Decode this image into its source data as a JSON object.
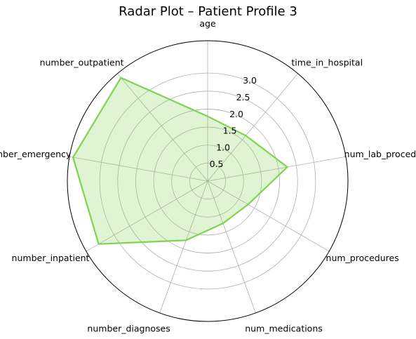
{
  "chart_data": {
    "type": "radar",
    "title": "Radar Plot – Patient Profile 3",
    "categories": [
      "age",
      "time_in_hospital",
      "num_lab_procedures",
      "num_procedures",
      "num_medications",
      "number_diagnoses",
      "number_inpatient",
      "number_emergency",
      "number_outpatient"
    ],
    "series": [
      {
        "values": [
          1.8,
          1.65,
          2.25,
          1.3,
          1.25,
          1.75,
          3.5,
          3.8,
          3.75
        ]
      }
    ],
    "rlim": [
      0,
      3.9
    ],
    "r_ticks": [
      0.5,
      1.0,
      1.5,
      2.0,
      2.5,
      3.0
    ],
    "r_tick_labels": [
      "0.5",
      "1.0",
      "1.5",
      "2.0",
      "2.5",
      "3.0"
    ],
    "grid": true,
    "line_color": "#7ed350",
    "fill_color": "#7ed350",
    "grid_color": "#b0b0b0",
    "frame_color": "#000000"
  }
}
